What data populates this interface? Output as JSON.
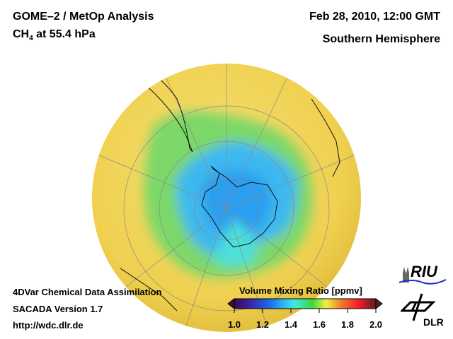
{
  "header": {
    "title": "GOME–2 / MetOp Analysis",
    "species": "CH",
    "species_sub": "4",
    "level": " at 55.4 hPa",
    "datetime": "Feb 28, 2010, 12:00 GMT",
    "region": "Southern Hemisphere"
  },
  "footer": {
    "line1": "4DVar Chemical Data Assimilation",
    "line2": "SACADA Version 1.7",
    "url": "http://wdc.dlr.de"
  },
  "colorbar": {
    "title": "Volume Mixing Ratio [ppmv]",
    "min": 1.0,
    "max": 2.0,
    "ticks": [
      "1.0",
      "1.2",
      "1.4",
      "1.6",
      "1.8",
      "2.0"
    ],
    "colors": [
      "#3a0a4a",
      "#3b1fa0",
      "#1a6cf0",
      "#3fe8f0",
      "#3cd83c",
      "#f0f040",
      "#f08030",
      "#f01c28",
      "#5a1e1e"
    ]
  },
  "logos": {
    "riu": "RIU",
    "dlr": "DLR"
  }
}
